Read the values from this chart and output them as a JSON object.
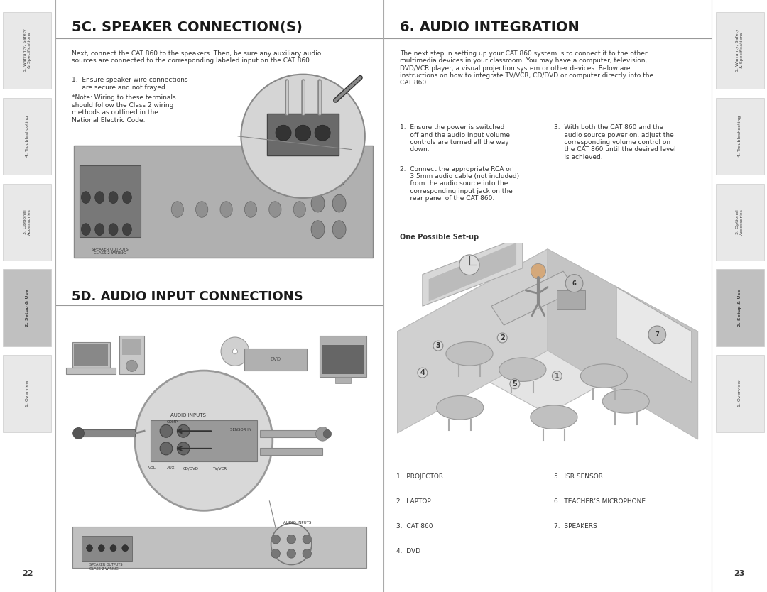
{
  "page_bg": "#ffffff",
  "sidebar_bg": "#f0f0f0",
  "sidebar_active_bg": "#c0c0c0",
  "sidebar_border": "#cccccc",
  "left_page_num": "22",
  "right_page_num": "23",
  "title_5c": "5C. SPEAKER CONNECTION(S)",
  "title_5d": "5D. AUDIO INPUT CONNECTIONS",
  "title_6": "6. AUDIO INTEGRATION",
  "sidebar_labels": [
    "5. Warranty, Safety\n& Specifications",
    "4. Troubleshooting",
    "3. Optional\nAccessories",
    "2. Setup & Use",
    "1. Overview"
  ],
  "sidebar_active_index": 3,
  "text_5c_intro": "Next, connect the CAT 860 to the speakers. Then, be sure any auxiliary audio\nsources are connected to the corresponding labeled input on the CAT 860.",
  "text_5c_1": "1.  Ensure speaker wire connections\n     are secure and not frayed.",
  "text_5c_note": "*Note: Wiring to these terminals\nshould follow the Class 2 wiring\nmethods as outlined in the\nNational Electric Code.",
  "text_6_intro": "The next step in setting up your CAT 860 system is to connect it to the other\nmultimedia devices in your classroom. You may have a computer, television,\nDVD/VCR player, a visual projection system or other devices. Below are\ninstructions on how to integrate TV/VCR, CD/DVD or computer directly into the\nCAT 860.",
  "text_6_1": "1.  Ensure the power is switched\n     off and the audio input volume\n     controls are turned all the way\n     down.",
  "text_6_2": "2.  Connect the appropriate RCA or\n     3.5mm audio cable (not included)\n     from the audio source into the\n     corresponding input jack on the\n     rear panel of the CAT 860.",
  "text_6_3": "3.  With both the CAT 860 and the\n     audio source power on, adjust the\n     corresponding volume control on\n     the CAT 860 until the desired level\n     is achieved.",
  "text_one_possible": "One Possible Set-up",
  "legend_items": [
    "1.  PROJECTOR",
    "2.  LAPTOP",
    "3.  CAT 860",
    "4.  DVD",
    "5.  ISR SENSOR",
    "6.  TEACHER’S MICROPHONE",
    "7.  SPEAKERS"
  ],
  "title_color": "#1a1a1a",
  "body_color": "#333333",
  "line_color": "#999999",
  "divider_color": "#aaaaaa"
}
